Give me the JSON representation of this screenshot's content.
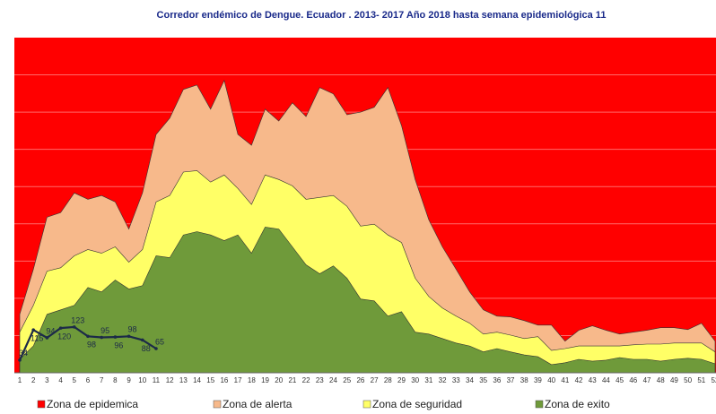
{
  "chart_data": {
    "type": "stacked_area",
    "title": "Corredor endémico de Dengue. Ecuador . 2013- 2017  Año 2018 hasta semana epidemiológica  11",
    "categories": [
      "1",
      "2",
      "3",
      "4",
      "5",
      "6",
      "7",
      "8",
      "9",
      "10",
      "11",
      "12",
      "13",
      "14",
      "15",
      "16",
      "17",
      "18",
      "19",
      "20",
      "21",
      "22",
      "23",
      "24",
      "25",
      "26",
      "27",
      "28",
      "29",
      "30",
      "31",
      "32",
      "33",
      "34",
      "35",
      "36",
      "37",
      "38",
      "39",
      "40",
      "41",
      "42",
      "43",
      "44",
      "45",
      "46",
      "47",
      "48",
      "49",
      "50",
      "51",
      "52"
    ],
    "background_zone": {
      "name": "Zona de epidemica",
      "color": "#ff0000"
    },
    "series": [
      {
        "name": "Zona de exito",
        "color": "#6f9a3a",
        "values": [
          36,
          72,
          157,
          169,
          181,
          229,
          217,
          249,
          225,
          234,
          314,
          309,
          370,
          379,
          370,
          355,
          370,
          321,
          391,
          386,
          338,
          290,
          266,
          287,
          254,
          198,
          193,
          152,
          164,
          109,
          104,
          92,
          80,
          72,
          56,
          65,
          56,
          48,
          43,
          22,
          27,
          36,
          31,
          34,
          41,
          36,
          36,
          31,
          36,
          39,
          36,
          24
        ]
      },
      {
        "name": "Zona de seguridad",
        "color": "#ffff66",
        "values": [
          73,
          109,
          116,
          113,
          133,
          102,
          104,
          89,
          72,
          97,
          145,
          167,
          169,
          164,
          142,
          176,
          125,
          131,
          140,
          133,
          164,
          176,
          205,
          189,
          193,
          196,
          206,
          218,
          186,
          145,
          101,
          82,
          72,
          61,
          48,
          44,
          45,
          44,
          54,
          38,
          38,
          36,
          41,
          38,
          31,
          39,
          41,
          46,
          44,
          41,
          44,
          32
        ]
      },
      {
        "name": "Zona de alerta",
        "color": "#f7b98b",
        "values": [
          48,
          97,
          145,
          148,
          169,
          135,
          155,
          121,
          89,
          152,
          181,
          208,
          222,
          230,
          196,
          254,
          145,
          159,
          177,
          157,
          223,
          222,
          295,
          273,
          246,
          306,
          314,
          396,
          314,
          265,
          206,
          164,
          126,
          84,
          65,
          43,
          49,
          48,
          31,
          68,
          20,
          42,
          54,
          42,
          32,
          34,
          37,
          44,
          41,
          36,
          53,
          29
        ]
      }
    ],
    "line": {
      "color": "#1c2a48",
      "values": [
        34,
        115,
        94,
        120,
        123,
        98,
        95,
        96,
        98,
        88,
        65,
        null,
        null,
        null,
        null,
        null,
        null,
        null,
        null,
        null,
        null,
        null,
        null,
        null,
        null,
        null,
        null,
        null,
        null,
        null,
        null,
        null,
        null,
        null,
        null,
        null,
        null,
        null,
        null,
        null,
        null,
        null,
        null,
        null,
        null,
        null,
        null,
        null,
        null,
        null,
        null,
        null
      ]
    },
    "ylim": [
      0,
      900
    ],
    "yticks": [
      100,
      200,
      300,
      400,
      500,
      600,
      700,
      800
    ],
    "grid": true
  }
}
